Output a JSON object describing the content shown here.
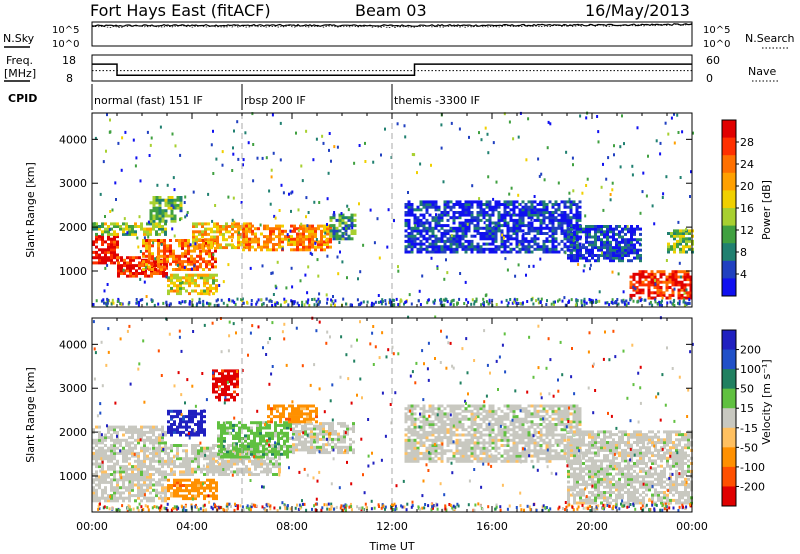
{
  "header": {
    "station": "Fort Hays East (fitACF)",
    "beam": "Beam 03",
    "date": "16/May/2013"
  },
  "panel_labels": {
    "nsky": "N.Sky",
    "nsearch": "N.Search",
    "freq_line1": "Freq.",
    "freq_line2": "[MHz]",
    "nave": "Nave",
    "cpid": "CPID"
  },
  "noise_axis": {
    "left_top": "10^5",
    "left_bottom": "10^0",
    "right_top": "10^5",
    "right_bottom": "10^0"
  },
  "freq_axis": {
    "left_top": "18",
    "left_bottom": "8",
    "right_top": "60",
    "right_bottom": "0"
  },
  "cpid_segments": [
    {
      "label": "normal (fast) 151 IF",
      "start_h": 0,
      "end_h": 6
    },
    {
      "label": "rbsp 200 IF",
      "start_h": 6,
      "end_h": 12
    },
    {
      "label": "themis -3300 IF",
      "start_h": 12,
      "end_h": 24
    }
  ],
  "colorbars": {
    "power": {
      "label": "Power [dB]",
      "ticks": [
        "28",
        "24",
        "20",
        "16",
        "12",
        "8",
        "4"
      ],
      "colors": [
        "#e00000",
        "#ff3000",
        "#ff7000",
        "#ffa000",
        "#f0d000",
        "#a8d030",
        "#40a040",
        "#208070",
        "#2040c0",
        "#1010f0"
      ]
    },
    "velocity": {
      "label": "Velocity [m s⁻¹]",
      "ticks": [
        "200",
        "100",
        "50",
        "15",
        "-15",
        "-50",
        "-100",
        "-200"
      ],
      "colors": [
        "#2020c0",
        "#2050c8",
        "#208060",
        "#60c040",
        "#c8c8c0",
        "#ffc060",
        "#ff9000",
        "#ff5000",
        "#e00000"
      ]
    }
  },
  "chart_data": [
    {
      "type": "line",
      "title": "",
      "series": [
        {
          "name": "N.Sky",
          "x_h": [
            0,
            4,
            8,
            12,
            16,
            20,
            24
          ],
          "values_log10": [
            4.2,
            4.3,
            4.3,
            4.25,
            4.3,
            4.35,
            4.5
          ]
        },
        {
          "name": "N.Search",
          "x_h": [
            0,
            4,
            8,
            12,
            16,
            20,
            24
          ],
          "values_log10": [
            4.0,
            4.1,
            4.1,
            4.0,
            4.1,
            4.2,
            4.4
          ]
        }
      ],
      "ylim_log10": [
        0,
        5
      ]
    },
    {
      "type": "line",
      "series": [
        {
          "name": "Freq.",
          "points": [
            [
              0,
              14.5
            ],
            [
              1,
              14.5
            ],
            [
              1,
              10.2
            ],
            [
              12.9,
              10.2
            ],
            [
              12.9,
              14.5
            ],
            [
              24,
              14.5
            ]
          ]
        },
        {
          "name": "Nave",
          "points": [
            [
              0,
              24
            ],
            [
              24,
              24
            ]
          ]
        }
      ],
      "ylim_freq": [
        8,
        18
      ],
      "ylim_nave": [
        0,
        60
      ]
    },
    {
      "type": "heatmap",
      "ylabel": "Slant Range [km]",
      "xlabel": "Time UT",
      "xlim_h": [
        0,
        24
      ],
      "ylim_km": [
        180,
        4600
      ],
      "xticks": [
        "00:00",
        "04:00",
        "08:00",
        "12:00",
        "16:00",
        "20:00",
        "00:00"
      ],
      "yticks": [
        1000,
        2000,
        3000,
        4000
      ],
      "regions": [
        {
          "t0": 0,
          "t1": 1,
          "r0": 1150,
          "r1": 1800,
          "level": 0.95
        },
        {
          "t0": 0,
          "t1": 3,
          "r0": 1800,
          "r1": 2100,
          "level": 0.45
        },
        {
          "t0": 1,
          "t1": 3,
          "r0": 850,
          "r1": 1300,
          "level": 0.9
        },
        {
          "t0": 2,
          "t1": 5,
          "r0": 1000,
          "r1": 1700,
          "level": 0.75
        },
        {
          "t0": 3,
          "t1": 5,
          "r0": 450,
          "r1": 900,
          "level": 0.55
        },
        {
          "t0": 2.3,
          "t1": 3.6,
          "r0": 2100,
          "r1": 2700,
          "level": 0.35
        },
        {
          "t0": 4,
          "t1": 6.3,
          "r0": 1500,
          "r1": 2100,
          "level": 0.6
        },
        {
          "t0": 6,
          "t1": 9.5,
          "r0": 1450,
          "r1": 2000,
          "level": 0.7
        },
        {
          "t0": 9.5,
          "t1": 10.5,
          "r0": 1700,
          "r1": 2300,
          "level": 0.3
        },
        {
          "t0": 12.5,
          "t1": 19.5,
          "r0": 1400,
          "r1": 2600,
          "level": 0.1
        },
        {
          "t0": 19,
          "t1": 22,
          "r0": 1200,
          "r1": 2000,
          "level": 0.12
        },
        {
          "t0": 21.5,
          "t1": 24,
          "r0": 350,
          "r1": 1000,
          "level": 0.9
        },
        {
          "t0": 23,
          "t1": 24,
          "r0": 1400,
          "r1": 1900,
          "level": 0.4
        }
      ]
    },
    {
      "type": "heatmap",
      "ylabel": "Slant Range [km]",
      "xlabel": "Time UT",
      "xlim_h": [
        0,
        24
      ],
      "ylim_km": [
        180,
        4600
      ],
      "xticks": [
        "00:00",
        "04:00",
        "08:00",
        "12:00",
        "16:00",
        "20:00",
        "00:00"
      ],
      "yticks": [
        1000,
        2000,
        3000,
        4000
      ],
      "regions": [
        {
          "t0": 0,
          "t1": 3,
          "r0": 400,
          "r1": 2100,
          "cls": 4
        },
        {
          "t0": 3,
          "t1": 4.5,
          "r0": 1900,
          "r1": 2500,
          "cls": 0
        },
        {
          "t0": 3,
          "t1": 5,
          "r0": 450,
          "r1": 900,
          "cls": 6
        },
        {
          "t0": 3,
          "t1": 7.5,
          "r0": 1000,
          "r1": 1700,
          "cls": 4
        },
        {
          "t0": 5,
          "t1": 8,
          "r0": 1400,
          "r1": 2200,
          "cls": 3
        },
        {
          "t0": 8,
          "t1": 10.5,
          "r0": 1500,
          "r1": 2200,
          "cls": 4
        },
        {
          "t0": 7,
          "t1": 9,
          "r0": 2200,
          "r1": 2600,
          "cls": 6
        },
        {
          "t0": 12.5,
          "t1": 19.5,
          "r0": 1300,
          "r1": 2600,
          "cls": 4
        },
        {
          "t0": 19,
          "t1": 24,
          "r0": 350,
          "r1": 2000,
          "cls": 4
        },
        {
          "t0": 4.8,
          "t1": 5.8,
          "r0": 2700,
          "r1": 3400,
          "cls": 8
        }
      ]
    }
  ]
}
